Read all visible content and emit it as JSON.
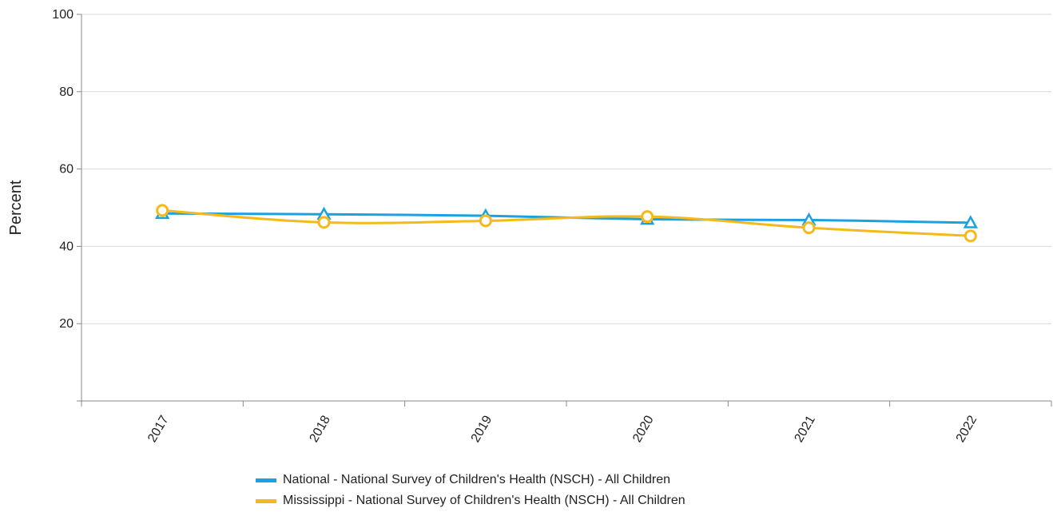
{
  "chart_data": {
    "type": "line",
    "categories": [
      "2017",
      "2018",
      "2019",
      "2020",
      "2021",
      "2022"
    ],
    "ylabel": "Percent",
    "ylim": [
      0,
      100
    ],
    "yticks": [
      20,
      40,
      60,
      80,
      100
    ],
    "grid": true,
    "legend_position": "bottom",
    "series": [
      {
        "name": "National - National Survey of Children's Health (NSCH) - All Children",
        "color": "#1BA1E2",
        "marker": "triangle",
        "values": [
          48.5,
          48.3,
          47.9,
          47.0,
          46.8,
          46.1
        ]
      },
      {
        "name": "Mississippi - National Survey of Children's Health (NSCH) - All Children",
        "color": "#F5BA1A",
        "marker": "circle",
        "values": [
          49.3,
          46.2,
          46.6,
          47.7,
          44.8,
          42.7
        ]
      }
    ]
  }
}
